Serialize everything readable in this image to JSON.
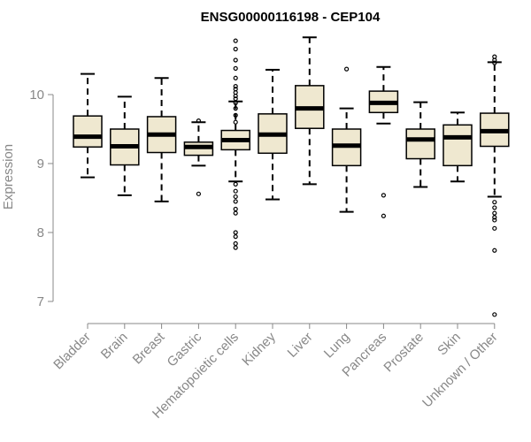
{
  "chart_data": {
    "type": "box",
    "title": "ENSG00000116198 - CEP104",
    "xlabel": "",
    "ylabel": "Expression",
    "yticks": [
      7,
      8,
      9,
      10
    ],
    "ylim": [
      6.75,
      10.9
    ],
    "grid": false,
    "colors": {
      "box_fill": "#efe8d0",
      "stroke": "#000000",
      "axis": "#888888"
    },
    "categories": [
      "Bladder",
      "Brain",
      "Breast",
      "Gastric",
      "Hematopoietic cells",
      "Kidney",
      "Liver",
      "Lung",
      "Pancreas",
      "Prostate",
      "Skin",
      "Unknown / Other"
    ],
    "boxes": [
      {
        "whisker_low": 8.8,
        "q1": 9.24,
        "median": 9.39,
        "q3": 9.69,
        "whisker_high": 10.3,
        "outliers": []
      },
      {
        "whisker_low": 8.54,
        "q1": 8.98,
        "median": 9.25,
        "q3": 9.5,
        "whisker_high": 9.97,
        "outliers": []
      },
      {
        "whisker_low": 8.45,
        "q1": 9.16,
        "median": 9.42,
        "q3": 9.68,
        "whisker_high": 10.24,
        "outliers": []
      },
      {
        "whisker_low": 8.97,
        "q1": 9.12,
        "median": 9.24,
        "q3": 9.31,
        "whisker_high": 9.6,
        "outliers": [
          8.56,
          9.62
        ]
      },
      {
        "whisker_low": 8.74,
        "q1": 9.2,
        "median": 9.34,
        "q3": 9.48,
        "whisker_high": 9.9,
        "outliers": [
          10.78,
          10.66,
          10.5,
          10.38,
          10.24,
          10.12,
          10.08,
          10.03,
          9.98,
          9.94,
          9.88,
          9.8,
          9.7,
          9.6,
          8.7,
          8.6,
          8.52,
          8.45,
          8.34,
          8.28,
          8.0,
          7.94,
          7.84,
          7.78
        ]
      },
      {
        "whisker_low": 8.48,
        "q1": 9.15,
        "median": 9.42,
        "q3": 9.72,
        "whisker_high": 10.36,
        "outliers": []
      },
      {
        "whisker_low": 8.7,
        "q1": 9.51,
        "median": 9.8,
        "q3": 10.13,
        "whisker_high": 10.83,
        "outliers": []
      },
      {
        "whisker_low": 8.3,
        "q1": 8.97,
        "median": 9.26,
        "q3": 9.5,
        "whisker_high": 9.8,
        "outliers": [
          10.37
        ]
      },
      {
        "whisker_low": 9.58,
        "q1": 9.74,
        "median": 9.88,
        "q3": 10.05,
        "whisker_high": 10.4,
        "outliers": [
          8.54,
          8.24
        ]
      },
      {
        "whisker_low": 8.66,
        "q1": 9.07,
        "median": 9.35,
        "q3": 9.5,
        "whisker_high": 9.89,
        "outliers": []
      },
      {
        "whisker_low": 8.74,
        "q1": 8.97,
        "median": 9.38,
        "q3": 9.56,
        "whisker_high": 9.74,
        "outliers": []
      },
      {
        "whisker_low": 8.52,
        "q1": 9.25,
        "median": 9.47,
        "q3": 9.73,
        "whisker_high": 10.47,
        "outliers": [
          10.55,
          10.5,
          10.46,
          8.44,
          8.36,
          8.28,
          8.22,
          8.18,
          8.06,
          7.74,
          6.81
        ]
      }
    ]
  }
}
